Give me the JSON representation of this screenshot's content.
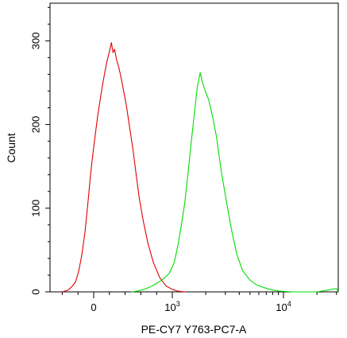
{
  "chart_data": {
    "type": "histogram",
    "xlabel": "PE-CY7 Y763-PC7-A",
    "ylabel": "Count",
    "x_scale": "biexponential",
    "x_ticks": [
      {
        "value": 0,
        "base": "0",
        "exp": ""
      },
      {
        "value": 1000,
        "base": "10",
        "exp": "3"
      },
      {
        "value": 10000,
        "base": "10",
        "exp": "4"
      }
    ],
    "ylim": [
      0,
      345
    ],
    "y_ticks": [
      {
        "value": 0,
        "label": "0"
      },
      {
        "value": 100,
        "label": "100"
      },
      {
        "value": 200,
        "label": "200"
      },
      {
        "value": 300,
        "label": "300"
      }
    ],
    "grid": false,
    "legend": "none",
    "series": [
      {
        "color": "#e00000",
        "points": [
          [
            -400,
            0
          ],
          [
            -330,
            2
          ],
          [
            -280,
            6
          ],
          [
            -230,
            12
          ],
          [
            -190,
            25
          ],
          [
            -150,
            45
          ],
          [
            -110,
            72
          ],
          [
            -70,
            110
          ],
          [
            -40,
            140
          ],
          [
            -10,
            165
          ],
          [
            20,
            188
          ],
          [
            50,
            210
          ],
          [
            80,
            228
          ],
          [
            110,
            246
          ],
          [
            140,
            262
          ],
          [
            170,
            276
          ],
          [
            200,
            287
          ],
          [
            225,
            298
          ],
          [
            245,
            286
          ],
          [
            265,
            290
          ],
          [
            290,
            278
          ],
          [
            320,
            268
          ],
          [
            350,
            255
          ],
          [
            385,
            238
          ],
          [
            420,
            220
          ],
          [
            460,
            195
          ],
          [
            500,
            170
          ],
          [
            540,
            140
          ],
          [
            580,
            112
          ],
          [
            630,
            85
          ],
          [
            690,
            58
          ],
          [
            760,
            35
          ],
          [
            840,
            17
          ],
          [
            920,
            7
          ],
          [
            1000,
            3
          ],
          [
            1100,
            1
          ],
          [
            1300,
            0
          ]
        ]
      },
      {
        "color": "#00dd00",
        "points": [
          [
            480,
            0
          ],
          [
            560,
            1
          ],
          [
            640,
            3
          ],
          [
            720,
            6
          ],
          [
            800,
            10
          ],
          [
            880,
            15
          ],
          [
            960,
            22
          ],
          [
            1040,
            35
          ],
          [
            1120,
            55
          ],
          [
            1200,
            78
          ],
          [
            1290,
            105
          ],
          [
            1380,
            140
          ],
          [
            1470,
            175
          ],
          [
            1570,
            210
          ],
          [
            1680,
            245
          ],
          [
            1780,
            262
          ],
          [
            1870,
            250
          ],
          [
            1980,
            240
          ],
          [
            2120,
            230
          ],
          [
            2300,
            210
          ],
          [
            2500,
            185
          ],
          [
            2750,
            145
          ],
          [
            3050,
            110
          ],
          [
            3400,
            75
          ],
          [
            3800,
            45
          ],
          [
            4300,
            25
          ],
          [
            5000,
            14
          ],
          [
            5800,
            8
          ],
          [
            6700,
            5
          ],
          [
            7500,
            3
          ],
          [
            9000,
            1
          ],
          [
            12000,
            0
          ],
          [
            20000,
            0
          ],
          [
            30000,
            4
          ],
          [
            34000,
            0
          ]
        ]
      }
    ]
  }
}
